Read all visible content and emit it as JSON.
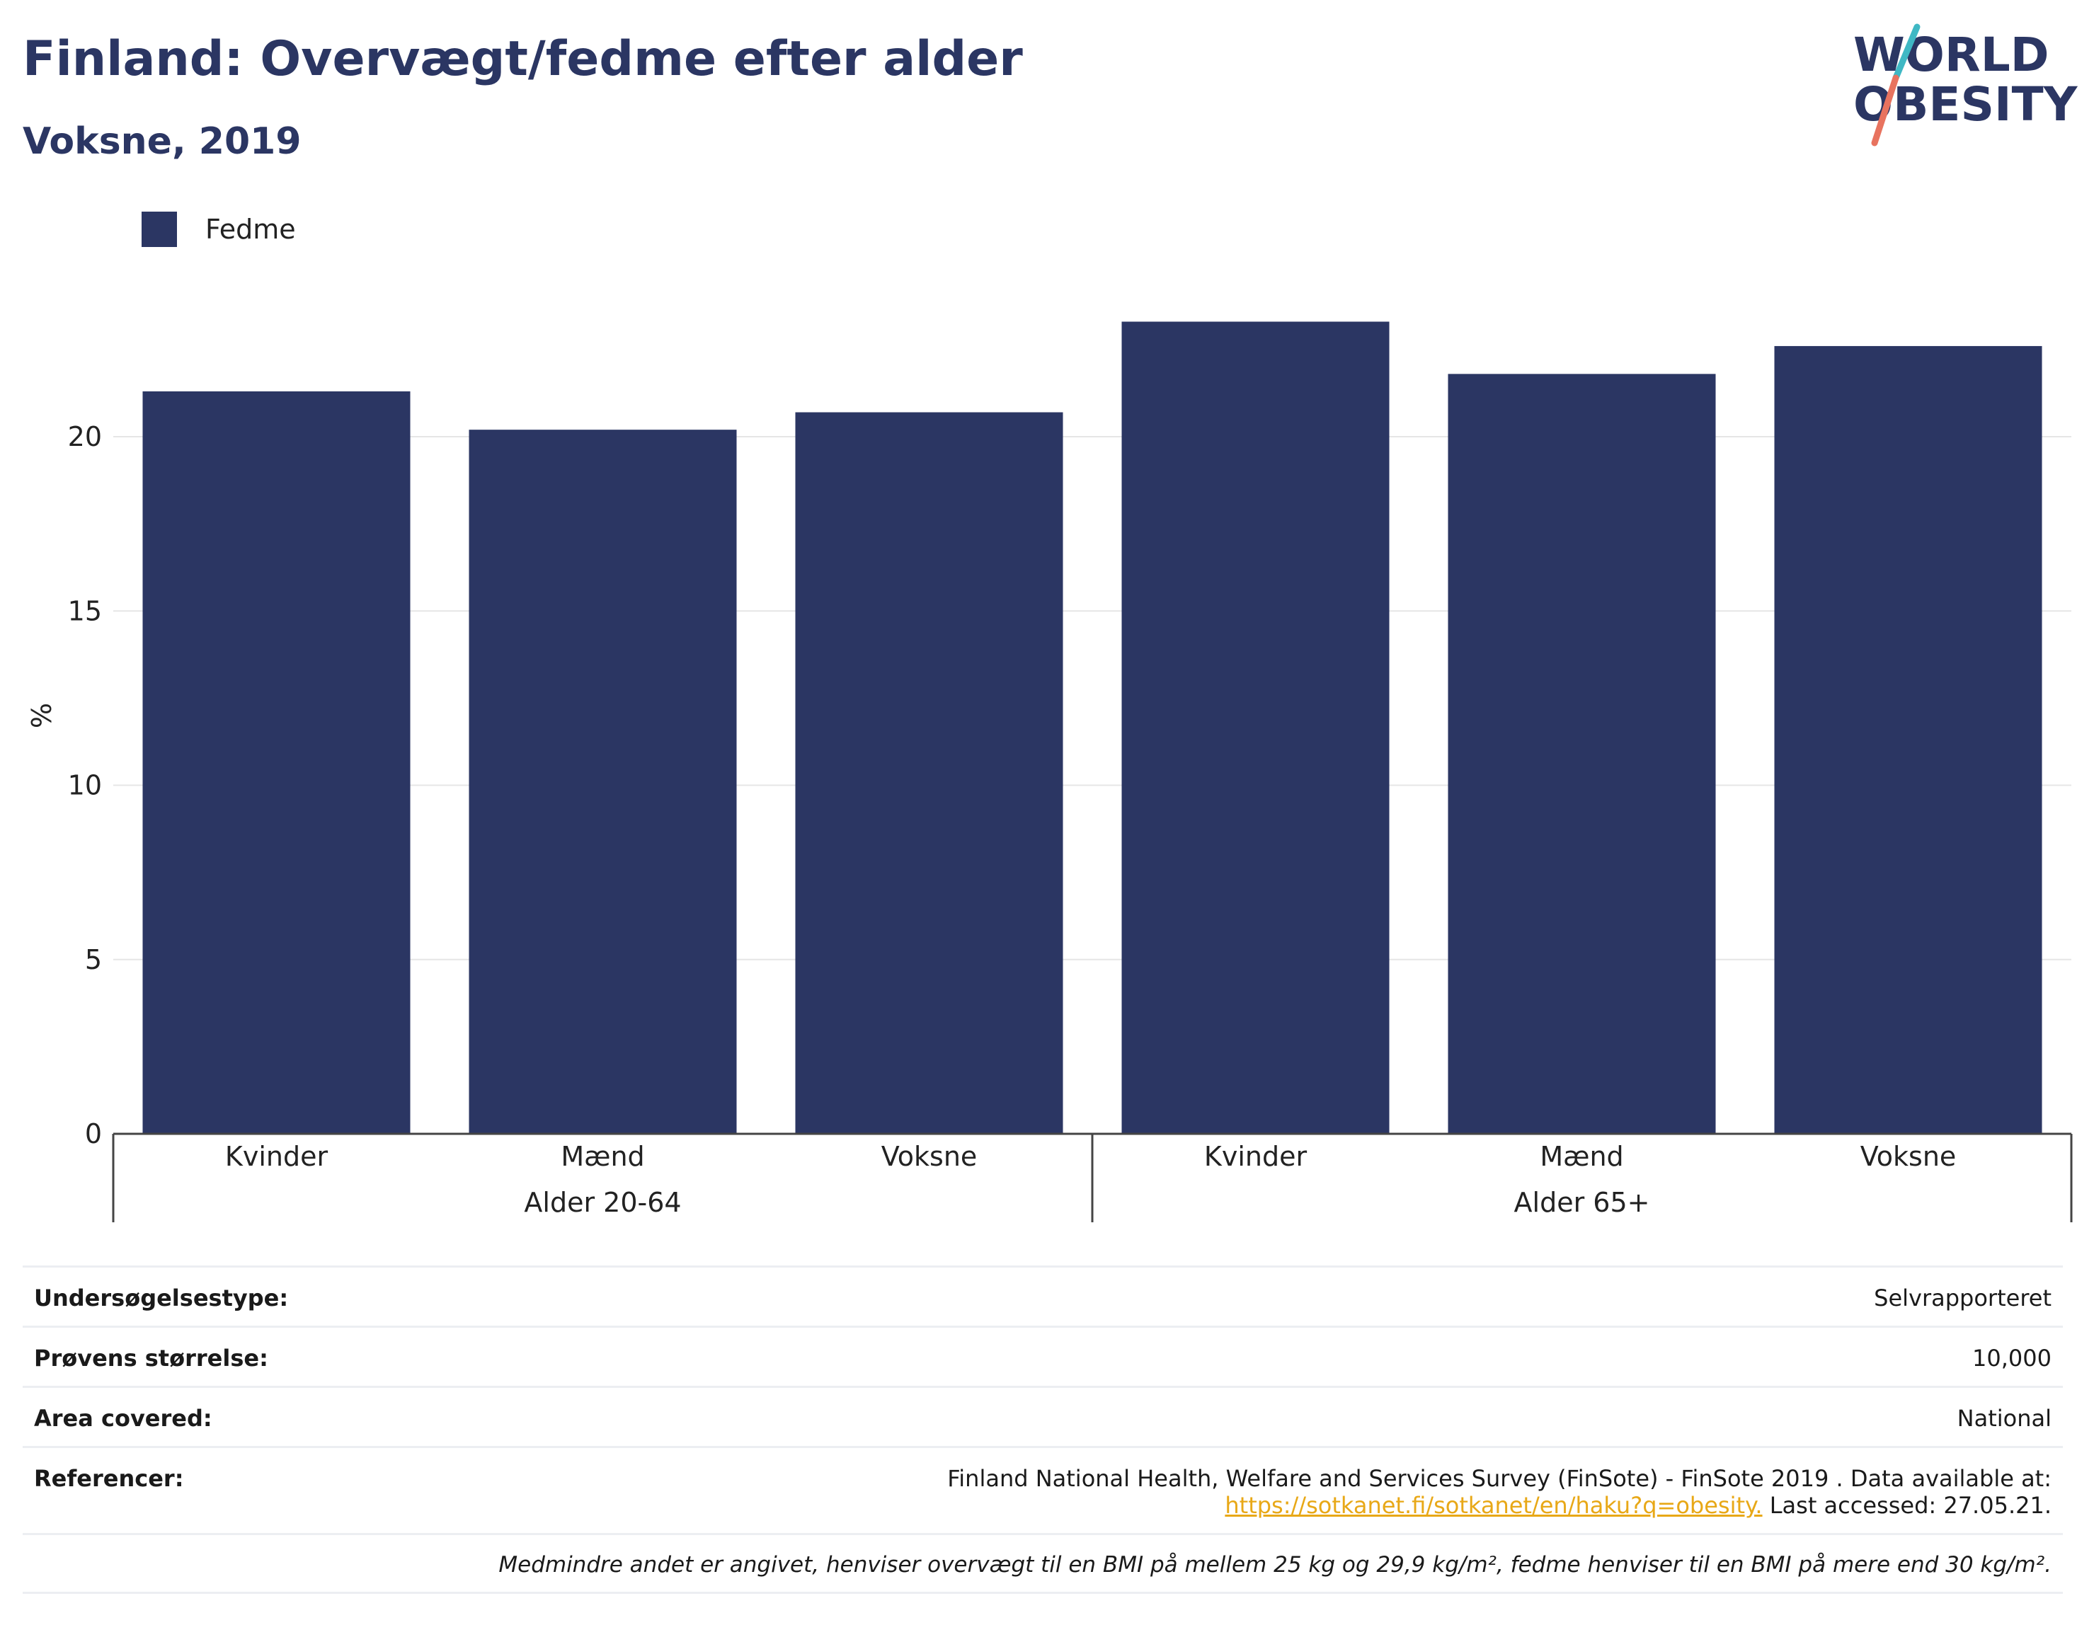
{
  "header": {
    "title": "Finland: Overvægt/fedme efter alder",
    "subtitle": "Voksne, 2019"
  },
  "logo": {
    "line1": "WORLD",
    "line2": "OBESITY",
    "colors": {
      "text": "#2b3663",
      "slash_top": "#3fb8c4",
      "slash_bottom": "#e8735f"
    }
  },
  "legend": {
    "items": [
      {
        "label": "Fedme",
        "color": "#2b3663"
      }
    ]
  },
  "chart_data": {
    "type": "bar",
    "title": "Finland: Overvægt/fedme efter alder",
    "subtitle": "Voksne, 2019",
    "ylabel": "%",
    "xlabel": "",
    "ylim": [
      0,
      24
    ],
    "yticks": [
      0,
      5,
      10,
      15,
      20
    ],
    "grid": true,
    "legend_position": "top-left",
    "categories": [
      "Kvinder",
      "Mænd",
      "Voksne",
      "Kvinder",
      "Mænd",
      "Voksne"
    ],
    "groups": [
      {
        "label": "Alder 20-64",
        "categories": [
          "Kvinder",
          "Mænd",
          "Voksne"
        ]
      },
      {
        "label": "Alder 65+",
        "categories": [
          "Kvinder",
          "Mænd",
          "Voksne"
        ]
      }
    ],
    "series": [
      {
        "name": "Fedme",
        "color": "#2b3663",
        "values": [
          21.3,
          20.2,
          20.7,
          23.3,
          21.8,
          22.6
        ]
      }
    ]
  },
  "info_table": {
    "rows": [
      {
        "key": "Undersøgelsestype:",
        "value": "Selvrapporteret"
      },
      {
        "key": "Prøvens størrelse:",
        "value": "10,000"
      },
      {
        "key": "Area covered:",
        "value": "National"
      }
    ],
    "references": {
      "key": "Referencer:",
      "text": "Finland National Health, Welfare and Services Survey (FinSote) - FinSote 2019 . Data available at:",
      "link": "https://sotkanet.fi/sotkanet/en/haku?q=obesity.",
      "accessed": "Last accessed: 27.05.21."
    },
    "note": "Medmindre andet er angivet, henviser overvægt til en BMI på mellem 25 kg og 29,9 kg/m², fedme henviser til en BMI på mere end 30 kg/m²."
  }
}
